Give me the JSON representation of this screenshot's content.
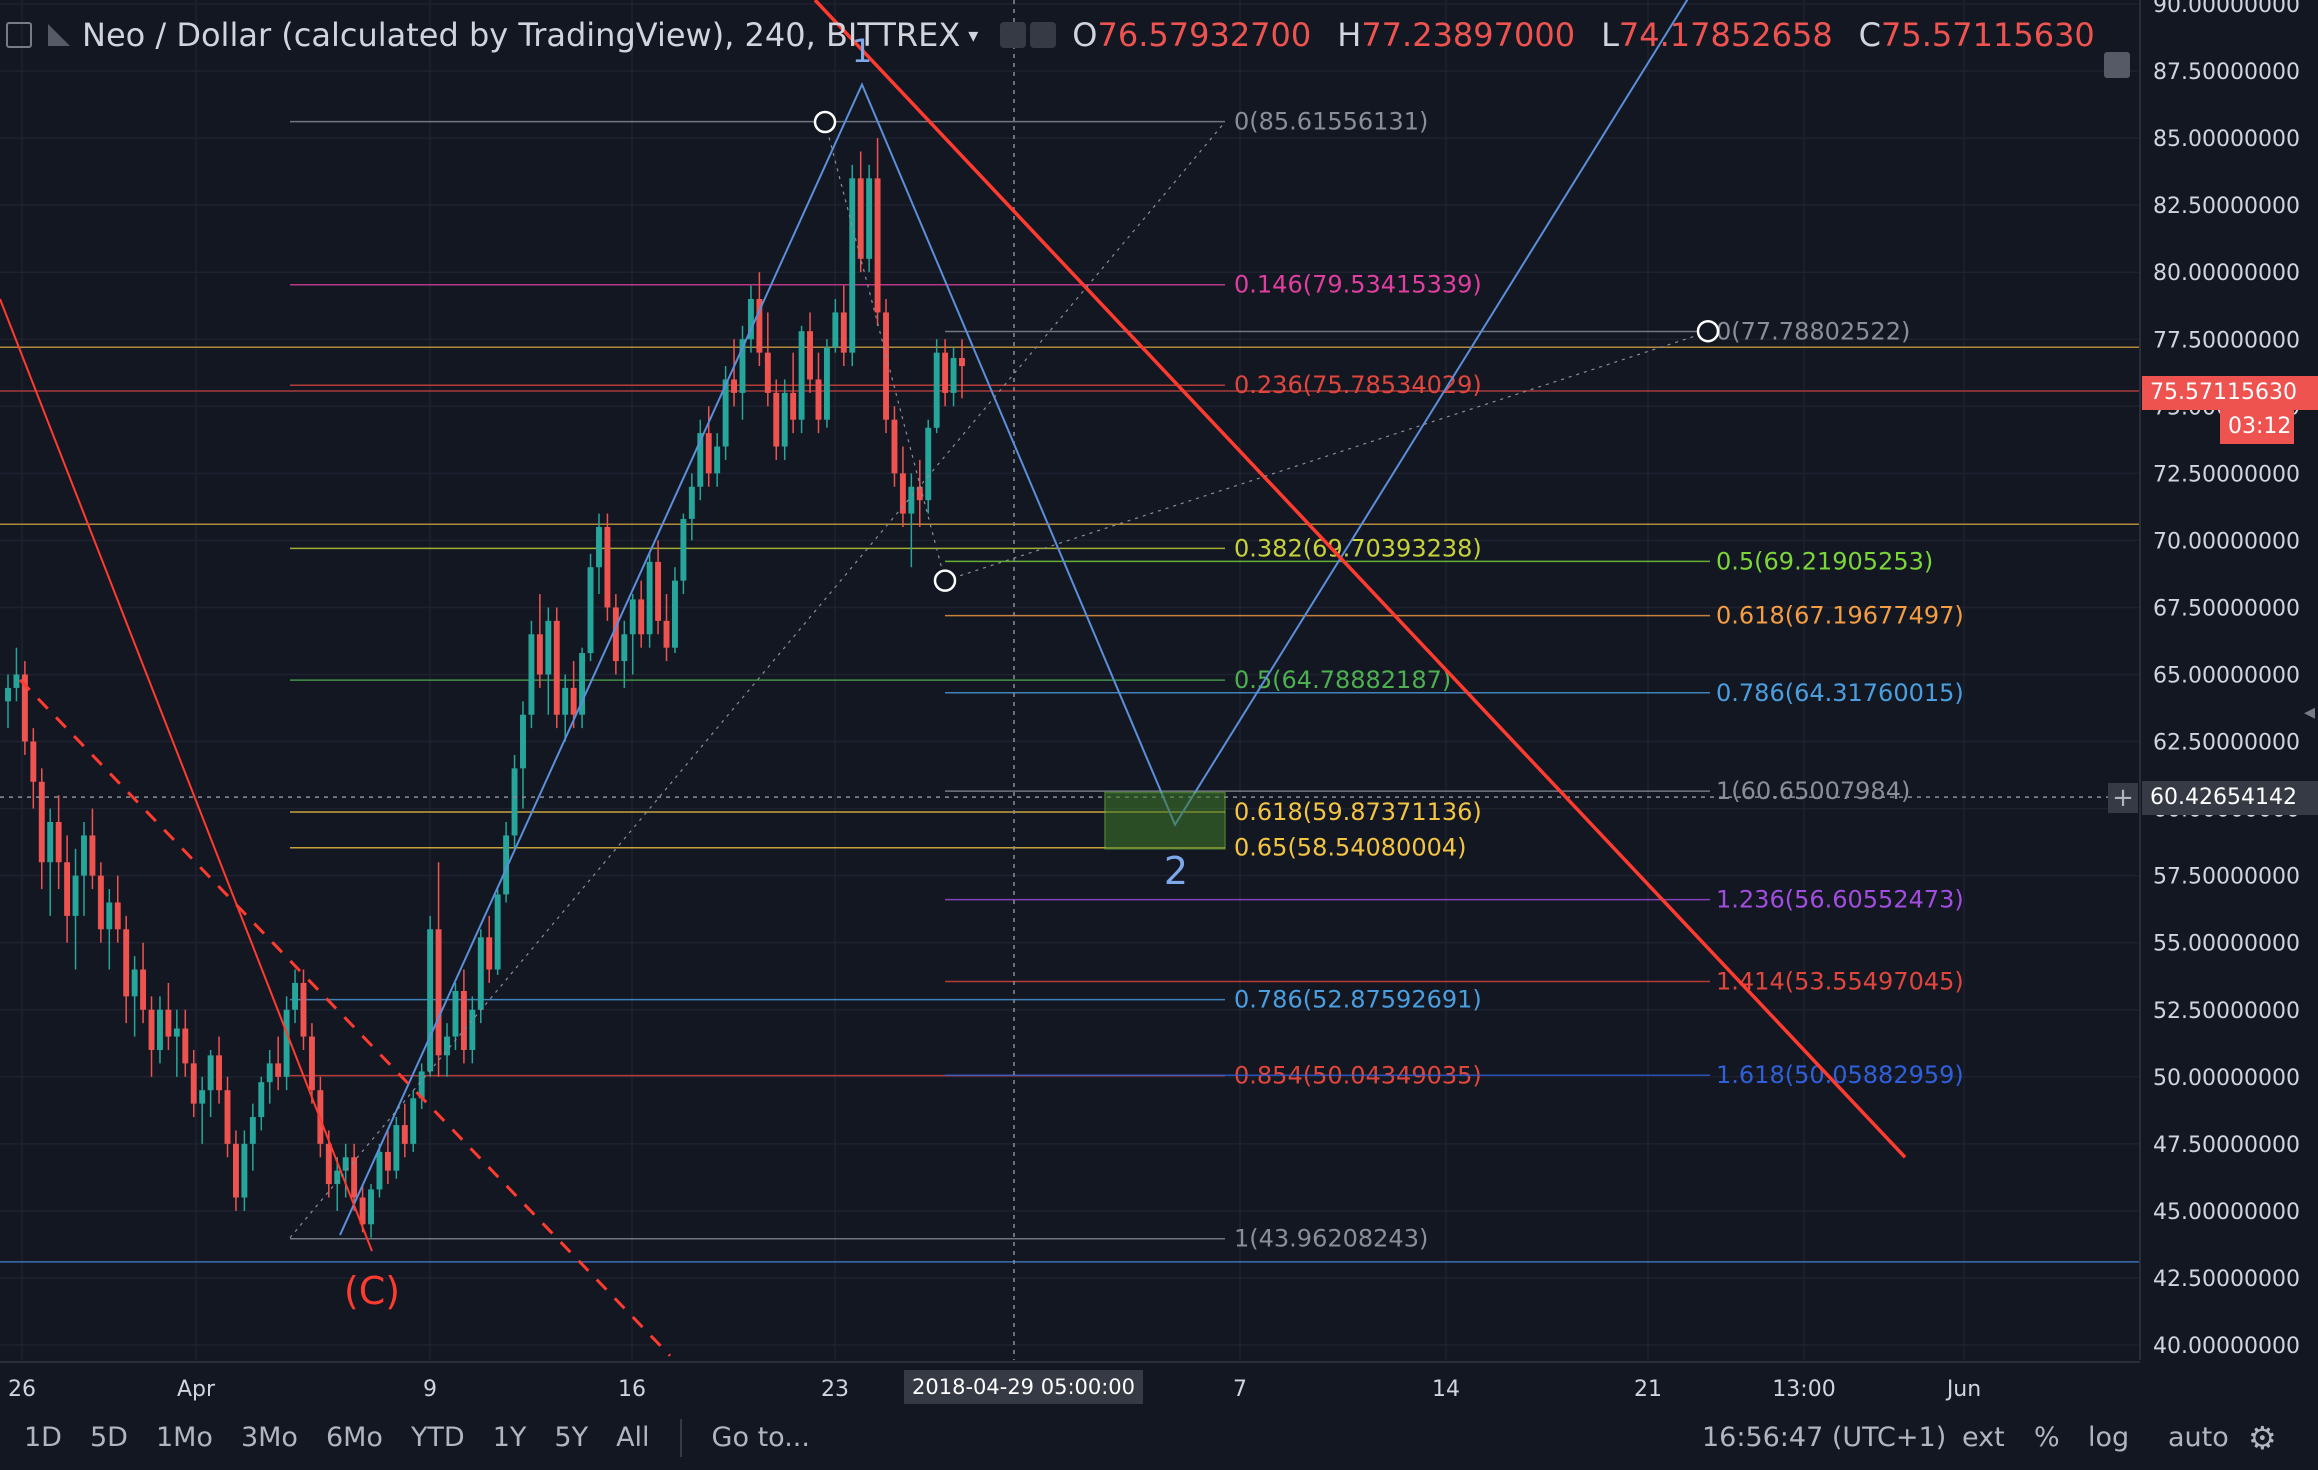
{
  "header": {
    "symbol": "Neo / Dollar (calculated by TradingView), 240, BITTREX",
    "o_label": "O",
    "o_value": "76.57932700",
    "h_label": "H",
    "h_value": "77.23897000",
    "l_label": "L",
    "l_value": "74.17852658",
    "c_label": "C",
    "c_value": "75.57115630"
  },
  "price_tags": {
    "last_price": "75.57115630",
    "countdown": "03:12",
    "crosshair_price": "60.42654142"
  },
  "crosshair_date": "2018-04-29 05:00:00",
  "bottom_bar": {
    "timeframes": [
      "1D",
      "5D",
      "1Mo",
      "3Mo",
      "6Mo",
      "YTD",
      "1Y",
      "5Y",
      "All"
    ],
    "goto": "Go to...",
    "clock": "16:56:47 (UTC+1)",
    "ext": "ext",
    "percent": "%",
    "log": "log",
    "auto": "auto"
  },
  "colors": {
    "background": "#131722",
    "up": "#26a69a",
    "down": "#ef5350",
    "trend_red": "#ff3b30",
    "wave_blue": "#5b8fd9"
  },
  "chart_data": {
    "type": "candlestick",
    "title": "Neo / Dollar (calculated by TradingView), 240, BITTREX",
    "y_axis": {
      "ticks": [
        "90.00000000",
        "87.50000000",
        "85.00000000",
        "82.50000000",
        "80.00000000",
        "77.50000000",
        "75.00000000",
        "72.50000000",
        "70.00000000",
        "67.50000000",
        "65.00000000",
        "62.50000000",
        "60.00000000",
        "57.50000000",
        "55.00000000",
        "52.50000000",
        "50.00000000",
        "47.50000000",
        "45.00000000",
        "42.50000000",
        "40.00000000"
      ],
      "range": [
        40,
        90
      ]
    },
    "x_axis": {
      "ticks": [
        "26",
        "Apr",
        "9",
        "16",
        "23",
        "7",
        "14",
        "21",
        "13:00",
        "Jun"
      ]
    },
    "fib_retracement_1": [
      {
        "ratio": "0",
        "value": "85.61556131",
        "color": "#8a8e99"
      },
      {
        "ratio": "0.146",
        "value": "79.53415339",
        "color": "#e03fa0"
      },
      {
        "ratio": "0.236",
        "value": "75.78534029",
        "color": "#e0463c"
      },
      {
        "ratio": "0.382",
        "value": "69.70393238",
        "color": "#c7d23a"
      },
      {
        "ratio": "0.5",
        "value": "64.78882187",
        "color": "#4caf50"
      },
      {
        "ratio": "0.618",
        "value": "59.87371136",
        "color": "#f4c542"
      },
      {
        "ratio": "0.65",
        "value": "58.54080004",
        "color": "#f4c542"
      },
      {
        "ratio": "0.786",
        "value": "52.87592691",
        "color": "#4a9fe0"
      },
      {
        "ratio": "0.854",
        "value": "50.04349035",
        "color": "#e0463c"
      },
      {
        "ratio": "1",
        "value": "43.96208243",
        "color": "#8a8e99"
      }
    ],
    "fib_extension_2": [
      {
        "ratio": "0",
        "value": "77.78802522",
        "color": "#8a8e99"
      },
      {
        "ratio": "0.5",
        "value": "69.21905253",
        "color": "#7bd63a"
      },
      {
        "ratio": "0.618",
        "value": "67.19677497",
        "color": "#f49d42"
      },
      {
        "ratio": "0.786",
        "value": "64.31760015",
        "color": "#4a9fe0"
      },
      {
        "ratio": "1",
        "value": "60.65007984",
        "color": "#8a8e99"
      },
      {
        "ratio": "1.236",
        "value": "56.60552473",
        "color": "#a24de0"
      },
      {
        "ratio": "1.414",
        "value": "53.55497045",
        "color": "#e0463c"
      },
      {
        "ratio": "1.618",
        "value": "50.05882959",
        "color": "#2f5fd9"
      }
    ],
    "annotations": [
      "(C)",
      "1",
      "2"
    ],
    "candles": [
      [
        64,
        65,
        63,
        64.5
      ],
      [
        64.5,
        66,
        64,
        65
      ],
      [
        65,
        65.5,
        62,
        62.5
      ],
      [
        62.5,
        63,
        60,
        61
      ],
      [
        61,
        61.5,
        57,
        58
      ],
      [
        58,
        60,
        56,
        59.5
      ],
      [
        59.5,
        60.5,
        57,
        58
      ],
      [
        58,
        59,
        55,
        56
      ],
      [
        56,
        58.5,
        54,
        57.5
      ],
      [
        57.5,
        59.5,
        56,
        59
      ],
      [
        59,
        60,
        57,
        57.5
      ],
      [
        57.5,
        58,
        55,
        55.5
      ],
      [
        55.5,
        57,
        54,
        56.5
      ],
      [
        56.5,
        57.5,
        55,
        55.5
      ],
      [
        55.5,
        56,
        52,
        53
      ],
      [
        53,
        54.5,
        51.5,
        54
      ],
      [
        54,
        55,
        52,
        52.5
      ],
      [
        52.5,
        53,
        50,
        51
      ],
      [
        51,
        53,
        50.5,
        52.5
      ],
      [
        52.5,
        53.5,
        51,
        51.5
      ],
      [
        51.5,
        52.5,
        50,
        51.8
      ],
      [
        51.8,
        52.5,
        50,
        50.5
      ],
      [
        50.5,
        51,
        48.5,
        49
      ],
      [
        49,
        50,
        47.5,
        49.5
      ],
      [
        49.5,
        51,
        48.5,
        50.8
      ],
      [
        50.8,
        51.5,
        49,
        49.5
      ],
      [
        49.5,
        50,
        47,
        47.5
      ],
      [
        47.5,
        48,
        45,
        45.5
      ],
      [
        45.5,
        48,
        45,
        47.5
      ],
      [
        47.5,
        49,
        46.5,
        48.5
      ],
      [
        48.5,
        50,
        48,
        49.8
      ],
      [
        49.8,
        51,
        49,
        50.5
      ],
      [
        50.5,
        51.5,
        49.5,
        50
      ],
      [
        50,
        53,
        49.5,
        52.5
      ],
      [
        52.5,
        54,
        52,
        53.5
      ],
      [
        53.5,
        54,
        51,
        51.5
      ],
      [
        51.5,
        52,
        49,
        49.5
      ],
      [
        49.5,
        50,
        47,
        47.5
      ],
      [
        47.5,
        48,
        45.5,
        46
      ],
      [
        46,
        47,
        45,
        46.5
      ],
      [
        46.5,
        47.5,
        45.5,
        47
      ],
      [
        47,
        47.5,
        45,
        45.5
      ],
      [
        45.5,
        46,
        44.2,
        44.5
      ],
      [
        44.5,
        46,
        44,
        45.8
      ],
      [
        45.8,
        47.5,
        45.5,
        47.2
      ],
      [
        47.2,
        48,
        46,
        46.5
      ],
      [
        46.5,
        48.5,
        46.2,
        48.2
      ],
      [
        48.2,
        49,
        47,
        47.5
      ],
      [
        47.5,
        49.5,
        47.2,
        49.2
      ],
      [
        49.2,
        50.5,
        48.8,
        50.2
      ],
      [
        50.2,
        56,
        50,
        55.5
      ],
      [
        55.5,
        58,
        50,
        50.8
      ],
      [
        50.8,
        52,
        50,
        51.5
      ],
      [
        51.5,
        53.5,
        51,
        53.2
      ],
      [
        53.2,
        54,
        50.5,
        51
      ],
      [
        51,
        53,
        50.5,
        52.5
      ],
      [
        52.5,
        55.5,
        52,
        55.2
      ],
      [
        55.2,
        56,
        53.5,
        54
      ],
      [
        54,
        57,
        53.8,
        56.8
      ],
      [
        56.8,
        59.5,
        56.5,
        59
      ],
      [
        59,
        62,
        58.5,
        61.5
      ],
      [
        61.5,
        64,
        60,
        63.5
      ],
      [
        63.5,
        67,
        63,
        66.5
      ],
      [
        66.5,
        68,
        64.5,
        65
      ],
      [
        65,
        67.5,
        63.5,
        67
      ],
      [
        67,
        67.5,
        63,
        63.5
      ],
      [
        63.5,
        65,
        62.5,
        64.5
      ],
      [
        64.5,
        65.5,
        63,
        63.5
      ],
      [
        63.5,
        66,
        63,
        65.8
      ],
      [
        65.8,
        69.5,
        65.5,
        69
      ],
      [
        69,
        71,
        68,
        70.5
      ],
      [
        70.5,
        71,
        67,
        67.5
      ],
      [
        67.5,
        68,
        65,
        65.5
      ],
      [
        65.5,
        67,
        64.5,
        66.5
      ],
      [
        66.5,
        68,
        65,
        67.8
      ],
      [
        67.8,
        68.5,
        66,
        66.5
      ],
      [
        66.5,
        69.5,
        66,
        69.2
      ],
      [
        69.2,
        70,
        66.5,
        67
      ],
      [
        67,
        68,
        65.5,
        66
      ],
      [
        66,
        69,
        65.8,
        68.5
      ],
      [
        68.5,
        71,
        68,
        70.8
      ],
      [
        70.8,
        72.5,
        70,
        72
      ],
      [
        72,
        74.5,
        71.5,
        74
      ],
      [
        74,
        75,
        72,
        72.5
      ],
      [
        72.5,
        74,
        72,
        73.5
      ],
      [
        73.5,
        76.5,
        73,
        76
      ],
      [
        76,
        77.5,
        75,
        75.5
      ],
      [
        75.5,
        78,
        74.5,
        77.5
      ],
      [
        77.5,
        79.5,
        77,
        79
      ],
      [
        79,
        80,
        76.5,
        77
      ],
      [
        77,
        78.5,
        75,
        75.5
      ],
      [
        75.5,
        76,
        73,
        73.5
      ],
      [
        73.5,
        76,
        73,
        75.5
      ],
      [
        75.5,
        77,
        74,
        74.5
      ],
      [
        74.5,
        78,
        74,
        77.8
      ],
      [
        77.8,
        78.5,
        75.5,
        76
      ],
      [
        76,
        77,
        74,
        74.5
      ],
      [
        74.5,
        77.5,
        74.2,
        77.2
      ],
      [
        77.2,
        79,
        77,
        78.5
      ],
      [
        78.5,
        79.5,
        76.5,
        77
      ],
      [
        77,
        84,
        76.5,
        83.5
      ],
      [
        83.5,
        84.5,
        80,
        80.5
      ],
      [
        80.5,
        84,
        80,
        83.5
      ],
      [
        83.5,
        85,
        78,
        78.5
      ],
      [
        78.5,
        79,
        74,
        74.5
      ],
      [
        74.5,
        75,
        72,
        72.5
      ],
      [
        72.5,
        73.5,
        70.5,
        71
      ],
      [
        71,
        72.5,
        69,
        72
      ],
      [
        72,
        73,
        70.5,
        71.5
      ],
      [
        71.5,
        74.5,
        71,
        74.2
      ],
      [
        74.2,
        77.5,
        74,
        77
      ],
      [
        77,
        77.5,
        75,
        75.5
      ],
      [
        75.5,
        77.2,
        75,
        76.8
      ],
      [
        76.8,
        77.5,
        75.3,
        76.5
      ]
    ]
  }
}
